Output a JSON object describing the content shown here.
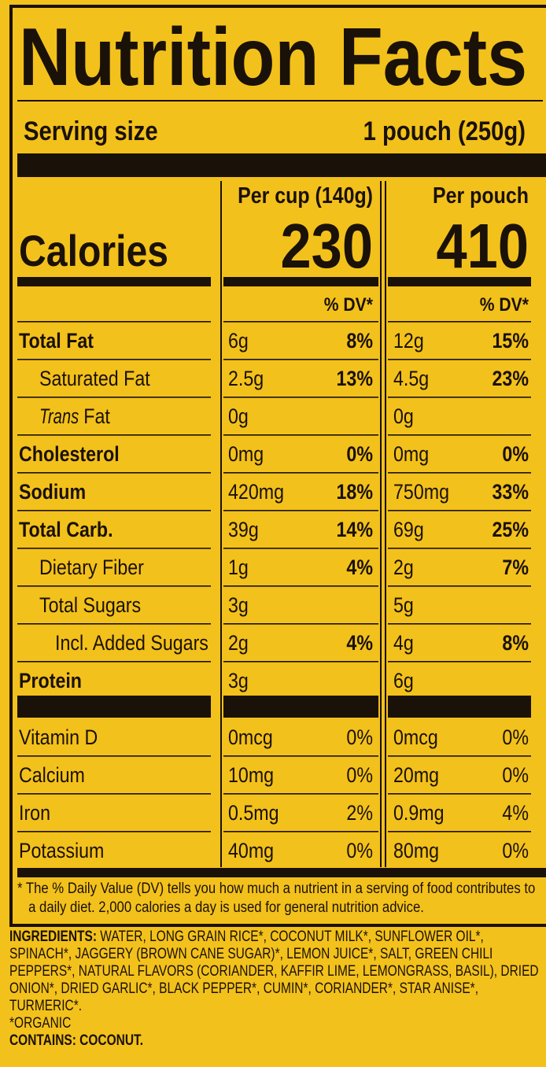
{
  "title": "Nutrition Facts",
  "serving_size": {
    "label": "Serving size",
    "value": "1 pouch (250g)"
  },
  "columns": [
    "Per cup (140g)",
    "Per pouch"
  ],
  "calories": {
    "label": "Calories",
    "values": [
      "230",
      "410"
    ]
  },
  "dv_header": [
    "% DV*",
    "% DV*"
  ],
  "nutrients": [
    {
      "name": "Total Fat",
      "bold": true,
      "indent": 0,
      "cup": [
        "6g",
        "8%"
      ],
      "pouch": [
        "12g",
        "15%"
      ]
    },
    {
      "name": "Saturated Fat",
      "bold": false,
      "indent": 1,
      "cup": [
        "2.5g",
        "13%"
      ],
      "pouch": [
        "4.5g",
        "23%"
      ]
    },
    {
      "name_italic": "Trans",
      "name": "Fat",
      "bold": false,
      "indent": 1,
      "cup": [
        "0g"
      ],
      "pouch": [
        "0g"
      ]
    },
    {
      "name": "Cholesterol",
      "bold": true,
      "indent": 0,
      "cup": [
        "0mg",
        "0%"
      ],
      "pouch": [
        "0mg",
        "0%"
      ]
    },
    {
      "name": "Sodium",
      "bold": true,
      "indent": 0,
      "cup": [
        "420mg",
        "18%"
      ],
      "pouch": [
        "750mg",
        "33%"
      ]
    },
    {
      "name": "Total Carb.",
      "bold": true,
      "indent": 0,
      "cup": [
        "39g",
        "14%"
      ],
      "pouch": [
        "69g",
        "25%"
      ]
    },
    {
      "name": "Dietary Fiber",
      "bold": false,
      "indent": 1,
      "cup": [
        "1g",
        "4%"
      ],
      "pouch": [
        "2g",
        "7%"
      ]
    },
    {
      "name": "Total Sugars",
      "bold": false,
      "indent": 1,
      "cup": [
        "3g"
      ],
      "pouch": [
        "5g"
      ]
    },
    {
      "name": "Incl. Added Sugars",
      "bold": false,
      "indent": 2,
      "cup": [
        "2g",
        "4%"
      ],
      "pouch": [
        "4g",
        "8%"
      ]
    },
    {
      "name": "Protein",
      "bold": true,
      "indent": 0,
      "cup": [
        "3g"
      ],
      "pouch": [
        "6g"
      ]
    }
  ],
  "vitamins": [
    {
      "name": "Vitamin D",
      "cup": [
        "0mcg",
        "0%"
      ],
      "pouch": [
        "0mcg",
        "0%"
      ]
    },
    {
      "name": "Calcium",
      "cup": [
        "10mg",
        "0%"
      ],
      "pouch": [
        "20mg",
        "0%"
      ]
    },
    {
      "name": "Iron",
      "cup": [
        "0.5mg",
        "2%"
      ],
      "pouch": [
        "0.9mg",
        "4%"
      ]
    },
    {
      "name": "Potassium",
      "cup": [
        "40mg",
        "0%"
      ],
      "pouch": [
        "80mg",
        "0%"
      ]
    }
  ],
  "footnote": "* The % Daily Value (DV) tells you how much a nutrient in a serving of food contributes to a daily diet. 2,000 calories a day is used for general nutrition advice.",
  "ingredients": {
    "label": "INGREDIENTS:",
    "text": "WATER, LONG GRAIN RICE*, COCONUT MILK*, SUNFLOWER OIL*, SPINACH*, JAGGERY (BROWN CANE SUGAR)*, LEMON JUICE*, SALT, GREEN CHILI PEPPERS*, NATURAL FLAVORS (CORIANDER, KAFFIR LIME, LEMONGRASS, BASIL), DRIED ONION*, DRIED GARLIC*, BLACK PEPPER*, CUMIN*, CORIANDER*, STAR ANISE*, TURMERIC*.",
    "organic_note": "*ORGANIC",
    "contains": "CONTAINS: COCONUT."
  }
}
